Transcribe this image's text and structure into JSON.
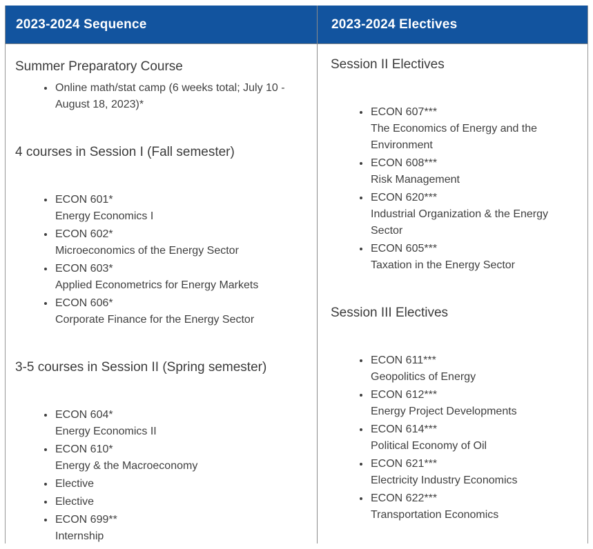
{
  "columns": [
    {
      "header": "2023-2024 Sequence",
      "sections": [
        {
          "heading": "Summer Preparatory Course",
          "items": [
            {
              "text": "Online math/stat camp (6 weeks total; July 10 - August 18, 2023)*"
            }
          ]
        },
        {
          "heading": "4 courses in Session I (Fall semester)",
          "items": [
            {
              "code": "ECON 601*",
              "title": "Energy Economics I"
            },
            {
              "code": "ECON 602*",
              "title": "Microeconomics of the Energy Sector"
            },
            {
              "code": "ECON 603*",
              "title": "Applied Econometrics for Energy Markets"
            },
            {
              "code": "ECON 606*",
              "title": "Corporate Finance for the Energy Sector"
            }
          ]
        },
        {
          "heading": "3-5 courses in Session II (Spring semester)",
          "items": [
            {
              "code": "ECON 604*",
              "title": "Energy Economics II"
            },
            {
              "code": "ECON 610*",
              "title": "Energy & the Macroeconomy"
            },
            {
              "code": "Elective"
            },
            {
              "code": "Elective"
            },
            {
              "code": "ECON 699**",
              "title": "Internship"
            }
          ]
        }
      ]
    },
    {
      "header": "2023-2024 Electives",
      "sections": [
        {
          "heading": "Session II Electives",
          "items": [
            {
              "code": "ECON 607***",
              "title": "The Economics of Energy and the Environment"
            },
            {
              "code": "ECON 608***",
              "title": "Risk Management"
            },
            {
              "code": "ECON 620***",
              "title": "Industrial Organization & the Energy Sector"
            },
            {
              "code": "ECON 605***",
              "title": "Taxation in the Energy Sector"
            }
          ]
        },
        {
          "heading": "Session III Electives",
          "items": [
            {
              "code": "ECON 611***",
              "title": "Geopolitics of Energy"
            },
            {
              "code": "ECON 612***",
              "title": "Energy Project Developments"
            },
            {
              "code": "ECON 614***",
              "title": "Political Economy of Oil"
            },
            {
              "code": "ECON 621***",
              "title": "Electricity Industry Economics"
            },
            {
              "code": "ECON 622***",
              "title": "Transportation Economics"
            }
          ]
        }
      ]
    }
  ],
  "colors": {
    "header_bg": "#12549F",
    "header_text": "#FFFFFF",
    "border": "#979797",
    "body_text": "#3F3F3F"
  }
}
